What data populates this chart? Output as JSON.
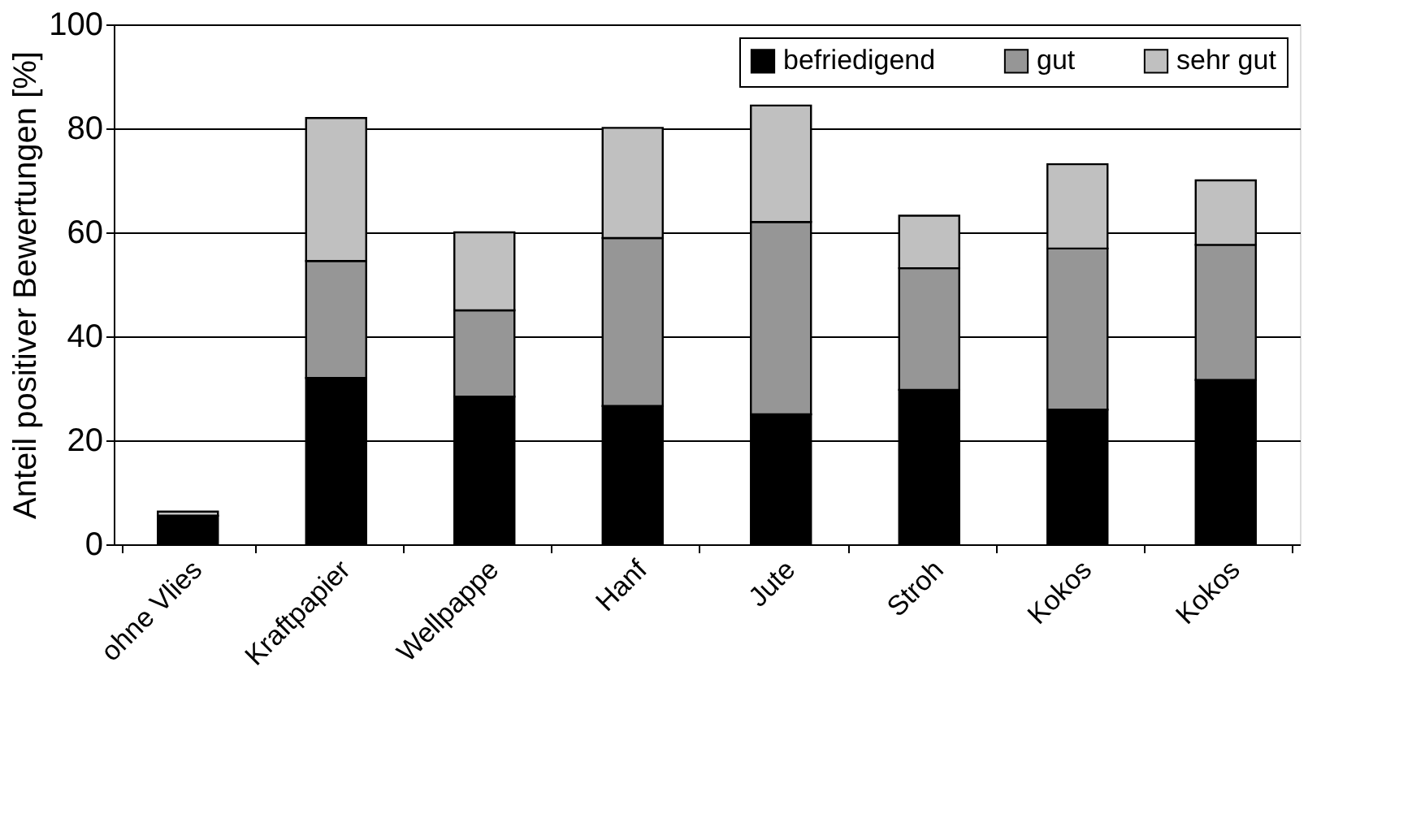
{
  "chart_data": {
    "type": "bar",
    "stacked": true,
    "ylabel": "Anteil positiver Bewertungen [%]",
    "categories": [
      "ohne Vlies",
      "Kraftpapier",
      "Wellpappe",
      "Hanf",
      "Jute",
      "Stroh",
      "Kokos",
      "Kokos"
    ],
    "series": [
      {
        "name": "befriedigend",
        "color": "#000000",
        "values": [
          5.5,
          32,
          28.4,
          26.6,
          25,
          29.7,
          25.9,
          31.6
        ]
      },
      {
        "name": "gut",
        "color": "#969696",
        "values": [
          null,
          22.5,
          16.6,
          32.3,
          37,
          23.4,
          31,
          26
        ]
      },
      {
        "name": "sehr gut",
        "color": "#c0c0c0",
        "values": [
          0.8,
          27.5,
          15,
          21.2,
          22.4,
          10.1,
          16.2,
          12.4
        ]
      }
    ],
    "ylim": [
      0,
      100
    ],
    "yticks": [
      0,
      20,
      40,
      60,
      80,
      100
    ],
    "grid": "y",
    "legend": "top right"
  }
}
